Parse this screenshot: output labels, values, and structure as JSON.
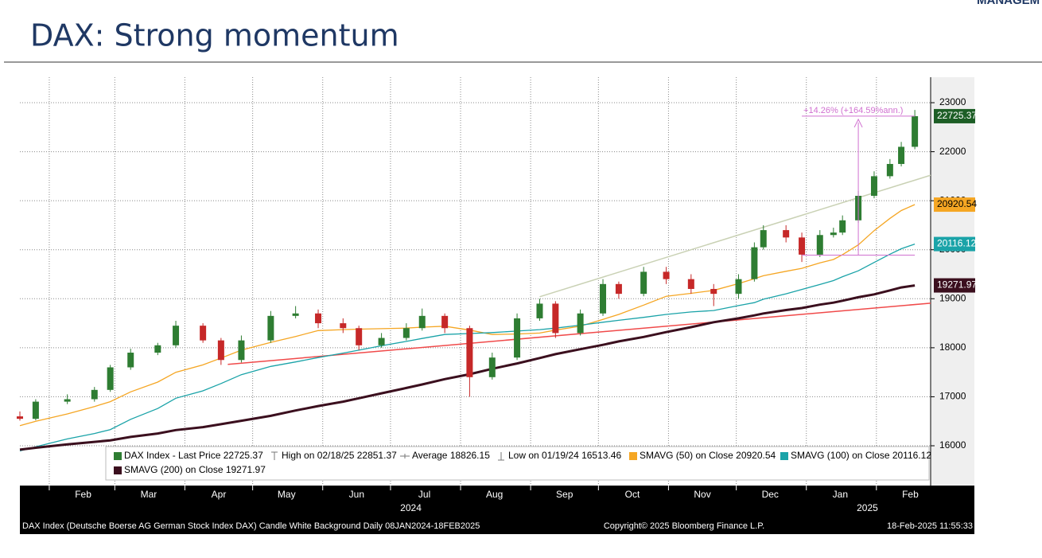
{
  "header_fragment": "MANAGEM",
  "chart_data": {
    "type": "candlestick",
    "title": "DAX: Strong momentum",
    "x": [
      "2024-01-19",
      "2024-01-26",
      "2024-02-09",
      "2024-02-21",
      "2024-02-28",
      "2024-03-08",
      "2024-03-20",
      "2024-03-28",
      "2024-04-09",
      "2024-04-17",
      "2024-04-26",
      "2024-05-09",
      "2024-05-20",
      "2024-05-30",
      "2024-06-10",
      "2024-06-17",
      "2024-06-27",
      "2024-07-08",
      "2024-07-15",
      "2024-07-25",
      "2024-08-05",
      "2024-08-15",
      "2024-08-26",
      "2024-09-05",
      "2024-09-12",
      "2024-09-23",
      "2024-10-03",
      "2024-10-10",
      "2024-10-21",
      "2024-10-31",
      "2024-11-11",
      "2024-11-21",
      "2024-12-02",
      "2024-12-09",
      "2024-12-13",
      "2024-12-23",
      "2024-12-30",
      "2025-01-07",
      "2025-01-13",
      "2025-01-17",
      "2025-01-24",
      "2025-01-31",
      "2025-02-07",
      "2025-02-12",
      "2025-02-18"
    ],
    "xlim": [
      "2024-01-19",
      "2025-02-25"
    ],
    "xticks": [
      {
        "value": "2024-02-01",
        "label": "Feb"
      },
      {
        "value": "2024-03-01",
        "label": "Mar"
      },
      {
        "value": "2024-04-01",
        "label": "Apr"
      },
      {
        "value": "2024-05-01",
        "label": "May"
      },
      {
        "value": "2024-06-01",
        "label": "Jun"
      },
      {
        "value": "2024-07-01",
        "label": "Jul"
      },
      {
        "value": "2024-08-01",
        "label": "Aug"
      },
      {
        "value": "2024-09-01",
        "label": "Sep"
      },
      {
        "value": "2024-10-01",
        "label": "Oct"
      },
      {
        "value": "2024-11-01",
        "label": "Nov"
      },
      {
        "value": "2024-12-01",
        "label": "Dec"
      },
      {
        "value": "2025-01-01",
        "label": "Jan"
      },
      {
        "value": "2025-02-01",
        "label": "Feb"
      }
    ],
    "year_labels": [
      {
        "value": "2024-07-10",
        "label": "2024"
      },
      {
        "value": "2025-01-28",
        "label": "2025"
      }
    ],
    "ylim": [
      15188,
      23520
    ],
    "yticks": [
      16000,
      17000,
      18000,
      19000,
      20000,
      21000,
      22000,
      23000
    ],
    "grid": true,
    "candles": {
      "name": "DAX Index - Last Price 22725.37",
      "up_color": "#2e7d32",
      "down_color": "#c62828",
      "open": [
        16600,
        16550,
        16900,
        16950,
        17140,
        17600,
        17900,
        18050,
        18450,
        18150,
        17750,
        18150,
        18650,
        18700,
        18500,
        18400,
        18050,
        18200,
        18400,
        18650,
        18400,
        17400,
        17800,
        18600,
        18900,
        18300,
        18700,
        19300,
        19100,
        19550,
        19400,
        19200,
        19100,
        19400,
        20050,
        20400,
        20250,
        19900,
        20300,
        20350,
        20600,
        21100,
        21500,
        21750,
        22100
      ],
      "high": [
        16700,
        16950,
        17050,
        17200,
        17650,
        17980,
        18100,
        18550,
        18500,
        18200,
        18250,
        18750,
        18850,
        18780,
        18600,
        18450,
        18300,
        18500,
        18800,
        18700,
        18450,
        17900,
        18700,
        19000,
        18950,
        18780,
        19400,
        19350,
        19650,
        19650,
        19500,
        19300,
        19500,
        20150,
        20500,
        20500,
        20350,
        20400,
        20450,
        20700,
        21200,
        21600,
        21850,
        22200,
        22851.37
      ],
      "low": [
        16513.46,
        16520,
        16850,
        16900,
        17100,
        17550,
        17850,
        18000,
        18100,
        17650,
        17700,
        18100,
        18600,
        18400,
        18300,
        17950,
        18000,
        18150,
        18350,
        18300,
        17000,
        17350,
        17750,
        18550,
        18200,
        18250,
        18650,
        19000,
        19050,
        19300,
        19100,
        18850,
        19000,
        19350,
        20000,
        20150,
        19750,
        19850,
        20250,
        20300,
        20550,
        21050,
        21450,
        21700,
        22050
      ],
      "close": [
        16550,
        16900,
        16950,
        17140,
        17600,
        17900,
        18050,
        18450,
        18150,
        17750,
        18150,
        18650,
        18700,
        18500,
        18400,
        18050,
        18200,
        18400,
        18650,
        18400,
        17400,
        17800,
        18600,
        18900,
        18300,
        18700,
        19300,
        19100,
        19550,
        19400,
        19200,
        19100,
        19400,
        20050,
        20400,
        20250,
        19900,
        20300,
        20350,
        20600,
        21100,
        21500,
        21750,
        22100,
        22725.37
      ]
    },
    "series": [
      {
        "name": "SMAVG (50)  on Close 20920.54",
        "color": "#f5a623",
        "values": [
          16410,
          16500,
          16650,
          16800,
          16900,
          17100,
          17300,
          17500,
          17650,
          17790,
          17950,
          18110,
          18230,
          18350,
          18370,
          18380,
          18390,
          18400,
          18420,
          18440,
          18360,
          18270,
          18280,
          18300,
          18360,
          18440,
          18580,
          18680,
          18870,
          19050,
          19110,
          19170,
          19310,
          19410,
          19470,
          19560,
          19620,
          19730,
          19800,
          19900,
          20100,
          20390,
          20640,
          20800,
          20920.54
        ]
      },
      {
        "name": "SMAVG (100)  on Close 20116.12",
        "color": "#1aa3a8",
        "values": [
          15895,
          15980,
          16140,
          16250,
          16330,
          16540,
          16760,
          16970,
          17120,
          17270,
          17450,
          17620,
          17710,
          17800,
          17890,
          17950,
          18040,
          18130,
          18190,
          18270,
          18290,
          18310,
          18340,
          18370,
          18400,
          18460,
          18520,
          18560,
          18620,
          18680,
          18730,
          18760,
          18860,
          18920,
          18990,
          19100,
          19190,
          19290,
          19370,
          19450,
          19570,
          19740,
          19910,
          20020,
          20116.12
        ]
      },
      {
        "name": "SMAVG (200)  on Close 19271.97",
        "color": "#3b0f1e",
        "values": [
          15920,
          15960,
          16030,
          16080,
          16110,
          16180,
          16250,
          16320,
          16380,
          16440,
          16510,
          16610,
          16720,
          16810,
          16900,
          16970,
          17070,
          17180,
          17250,
          17360,
          17460,
          17570,
          17680,
          17790,
          17870,
          17970,
          18060,
          18130,
          18220,
          18320,
          18420,
          18520,
          18600,
          18660,
          18700,
          18770,
          18810,
          18880,
          18920,
          18960,
          19030,
          19090,
          19170,
          19230,
          19271.97
        ]
      }
    ],
    "legend_info": [
      "High on 02/18/25 22851.37",
      "Average 18826.15",
      "Low on 01/19/24 16513.46"
    ],
    "trendlines": [
      {
        "color": "#c9d1b4",
        "x": [
          "2024-09-05",
          "2025-02-25"
        ],
        "values": [
          19040,
          21520
        ]
      },
      {
        "color": "#f04a4a",
        "x": [
          "2024-04-20",
          "2025-02-25"
        ],
        "values": [
          17660,
          18910
        ]
      }
    ],
    "measure": {
      "label": "+14.26% (+164.59%ann.)",
      "color": "#d070d0",
      "x": [
        "2024-12-30",
        "2025-02-18"
      ],
      "from": 19890,
      "to": 22725.37
    },
    "footer": [
      "DAX Index (Deutsche Boerse AG German Stock Index DAX) Candle White Background  Daily 08JAN2024-18FEB2025",
      "Copyright© 2025 Bloomberg Finance L.P.",
      "18-Feb-2025 11:55:33"
    ]
  }
}
